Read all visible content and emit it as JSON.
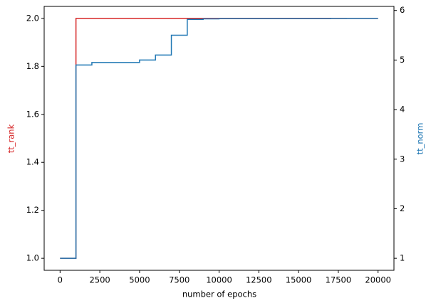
{
  "chart_data": {
    "type": "line",
    "drawstyle": "steps-post",
    "xlabel": "number of epochs",
    "ylabel": "tt_rank",
    "y2label": "tt_norm",
    "x": [
      0,
      1000,
      2000,
      3000,
      4000,
      5000,
      6000,
      7000,
      8000,
      9000,
      10000,
      11000,
      12000,
      13000,
      14000,
      15000,
      16000,
      17000,
      18000,
      19000,
      20000
    ],
    "series": [
      {
        "name": "tt_rank",
        "color": "#d62728",
        "axis": "y",
        "values": [
          1,
          2,
          2,
          2,
          2,
          2,
          2,
          2,
          2,
          2,
          2,
          2,
          2,
          2,
          2,
          2,
          2,
          2,
          2,
          2,
          2
        ]
      },
      {
        "name": "tt_norm",
        "color": "#1f77b4",
        "axis": "y2",
        "values": [
          1,
          4.9,
          4.95,
          4.95,
          4.95,
          5.0,
          5.1,
          5.5,
          5.82,
          5.83,
          5.835,
          5.835,
          5.835,
          5.835,
          5.835,
          5.835,
          5.835,
          5.838,
          5.84,
          5.84,
          5.84
        ]
      }
    ],
    "xlim": [
      -1000,
      21000
    ],
    "xticks": [
      0,
      2500,
      5000,
      7500,
      10000,
      12500,
      15000,
      17500,
      20000
    ],
    "ylim": [
      0.95,
      2.05
    ],
    "yticks": [
      {
        "value": 1,
        "label": "1.0"
      },
      {
        "value": 1.2,
        "label": "1.2"
      },
      {
        "value": 1.4,
        "label": "1.4"
      },
      {
        "value": 1.6,
        "label": "1.6"
      },
      {
        "value": 1.8,
        "label": "1.8"
      },
      {
        "value": 2,
        "label": "2.0"
      }
    ],
    "y2lim": [
      0.758,
      6.082
    ],
    "y2ticks": [
      1,
      2,
      3,
      4,
      5,
      6
    ]
  }
}
